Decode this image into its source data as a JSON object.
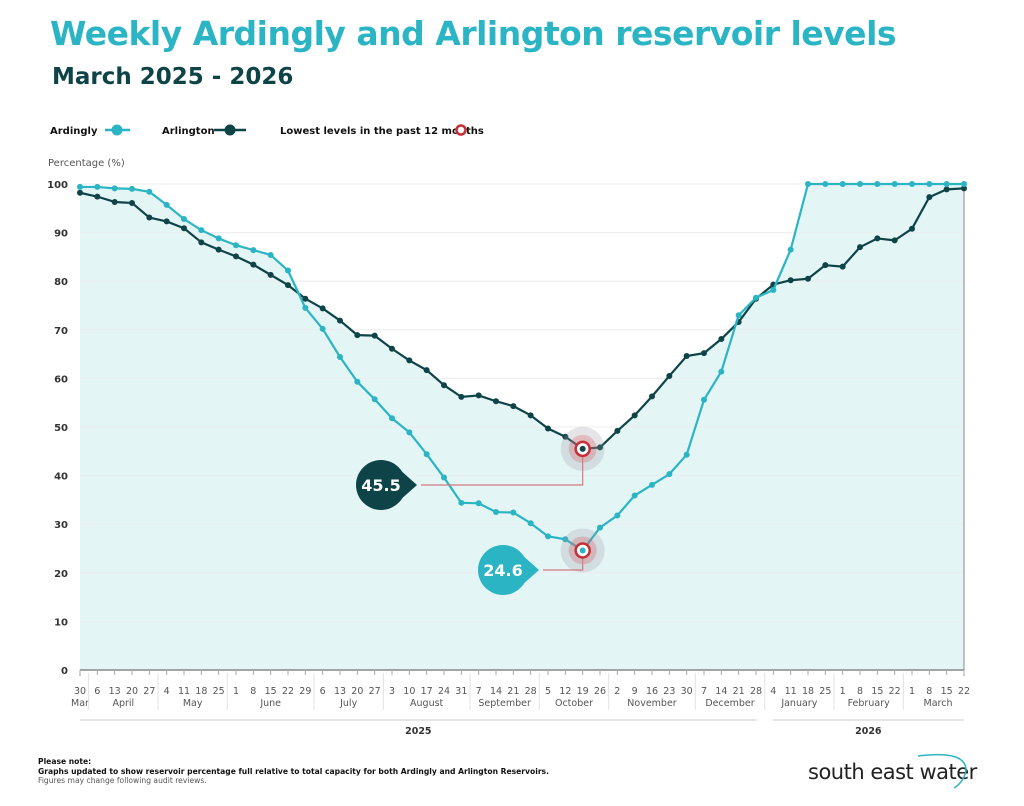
{
  "header": {
    "title": "Weekly Ardingly and Arlington reservoir levels",
    "subtitle": "March 2025 - 2026"
  },
  "legend": {
    "items": [
      {
        "label": "Ardingly",
        "color": "#2bb5c4"
      },
      {
        "label": "Arlington",
        "color": "#0e4448"
      },
      {
        "label": "Lowest levels in the past 12 months",
        "color": "#c62f36"
      }
    ]
  },
  "chart_data": {
    "type": "line",
    "ylabel": "Percentage (%)",
    "ylim": [
      0,
      100
    ],
    "yticks": [
      0,
      10,
      20,
      30,
      40,
      50,
      60,
      70,
      80,
      90,
      100
    ],
    "grid": true,
    "legend_position": "top-left",
    "x_tick_labels": [
      "30",
      "6",
      "13",
      "20",
      "27",
      "4",
      "11",
      "18",
      "25",
      "1",
      "8",
      "15",
      "22",
      "29",
      "6",
      "13",
      "20",
      "27",
      "3",
      "10",
      "17",
      "24",
      "31",
      "7",
      "14",
      "21",
      "28",
      "5",
      "12",
      "19",
      "26",
      "2",
      "9",
      "16",
      "23",
      "30",
      "7",
      "14",
      "21",
      "28",
      "4",
      "11",
      "18",
      "25",
      "1",
      "8",
      "15",
      "22",
      "1",
      "8",
      "15",
      "22"
    ],
    "months": [
      {
        "label": "Mar",
        "start": 0,
        "end": 0
      },
      {
        "label": "April",
        "start": 1,
        "end": 4
      },
      {
        "label": "May",
        "start": 5,
        "end": 8
      },
      {
        "label": "June",
        "start": 9,
        "end": 13
      },
      {
        "label": "July",
        "start": 14,
        "end": 17
      },
      {
        "label": "August",
        "start": 18,
        "end": 22
      },
      {
        "label": "September",
        "start": 23,
        "end": 26
      },
      {
        "label": "October",
        "start": 27,
        "end": 30
      },
      {
        "label": "November",
        "start": 31,
        "end": 35
      },
      {
        "label": "December",
        "start": 36,
        "end": 39
      },
      {
        "label": "January",
        "start": 40,
        "end": 43
      },
      {
        "label": "February",
        "start": 44,
        "end": 47
      },
      {
        "label": "March",
        "start": 48,
        "end": 51
      }
    ],
    "years": [
      {
        "label": "2025",
        "start": 0,
        "end": 39
      },
      {
        "label": "2026",
        "start": 40,
        "end": 51
      }
    ],
    "series": [
      {
        "name": "Ardingly",
        "color": "#2bb5c4",
        "values": [
          99.4,
          99.4,
          99.1,
          99.0,
          98.4,
          95.7,
          92.8,
          90.5,
          88.8,
          87.4,
          86.4,
          85.4,
          82.2,
          74.5,
          70.2,
          64.4,
          59.3,
          55.7,
          51.8,
          48.9,
          44.4,
          39.6,
          34.4,
          34.3,
          32.5,
          32.4,
          30.2,
          27.5,
          26.9,
          24.6,
          29.3,
          31.8,
          35.9,
          38.1,
          40.3,
          44.3,
          55.6,
          61.4,
          73.0,
          76.6,
          78.2,
          86.5,
          100,
          100,
          100,
          100,
          100,
          100,
          100,
          100,
          100,
          100
        ]
      },
      {
        "name": "Arlington",
        "color": "#0e4448",
        "values": [
          98.2,
          97.4,
          96.3,
          96.1,
          93.1,
          92.3,
          90.9,
          88.0,
          86.5,
          85.1,
          83.4,
          81.3,
          79.2,
          76.4,
          74.4,
          71.9,
          68.9,
          68.8,
          66.1,
          63.7,
          61.7,
          58.6,
          56.2,
          56.5,
          55.3,
          54.3,
          52.4,
          49.7,
          48.0,
          45.5,
          45.8,
          49.2,
          52.4,
          56.3,
          60.5,
          64.6,
          65.2,
          68.1,
          71.6,
          76.4,
          79.3,
          80.2,
          80.5,
          83.3,
          83.0,
          87.0,
          88.8,
          88.4,
          90.8,
          97.3,
          98.9,
          99.1
        ]
      }
    ],
    "annotations": [
      {
        "series": "Arlington",
        "index": 29,
        "label": "45.5",
        "color": "#0e4448"
      },
      {
        "series": "Ardingly",
        "index": 29,
        "label": "24.6",
        "color": "#2bb5c4"
      }
    ],
    "fill_color": "#e4f5f6"
  },
  "footer": {
    "note_heading": "Please note:",
    "note_line1": "Graphs updated to show reservoir percentage full relative to total capacity for both Ardingly and Arlington Reservoirs.",
    "note_line2": "Figures may change following audit reviews.",
    "logo_text": "south east water"
  }
}
